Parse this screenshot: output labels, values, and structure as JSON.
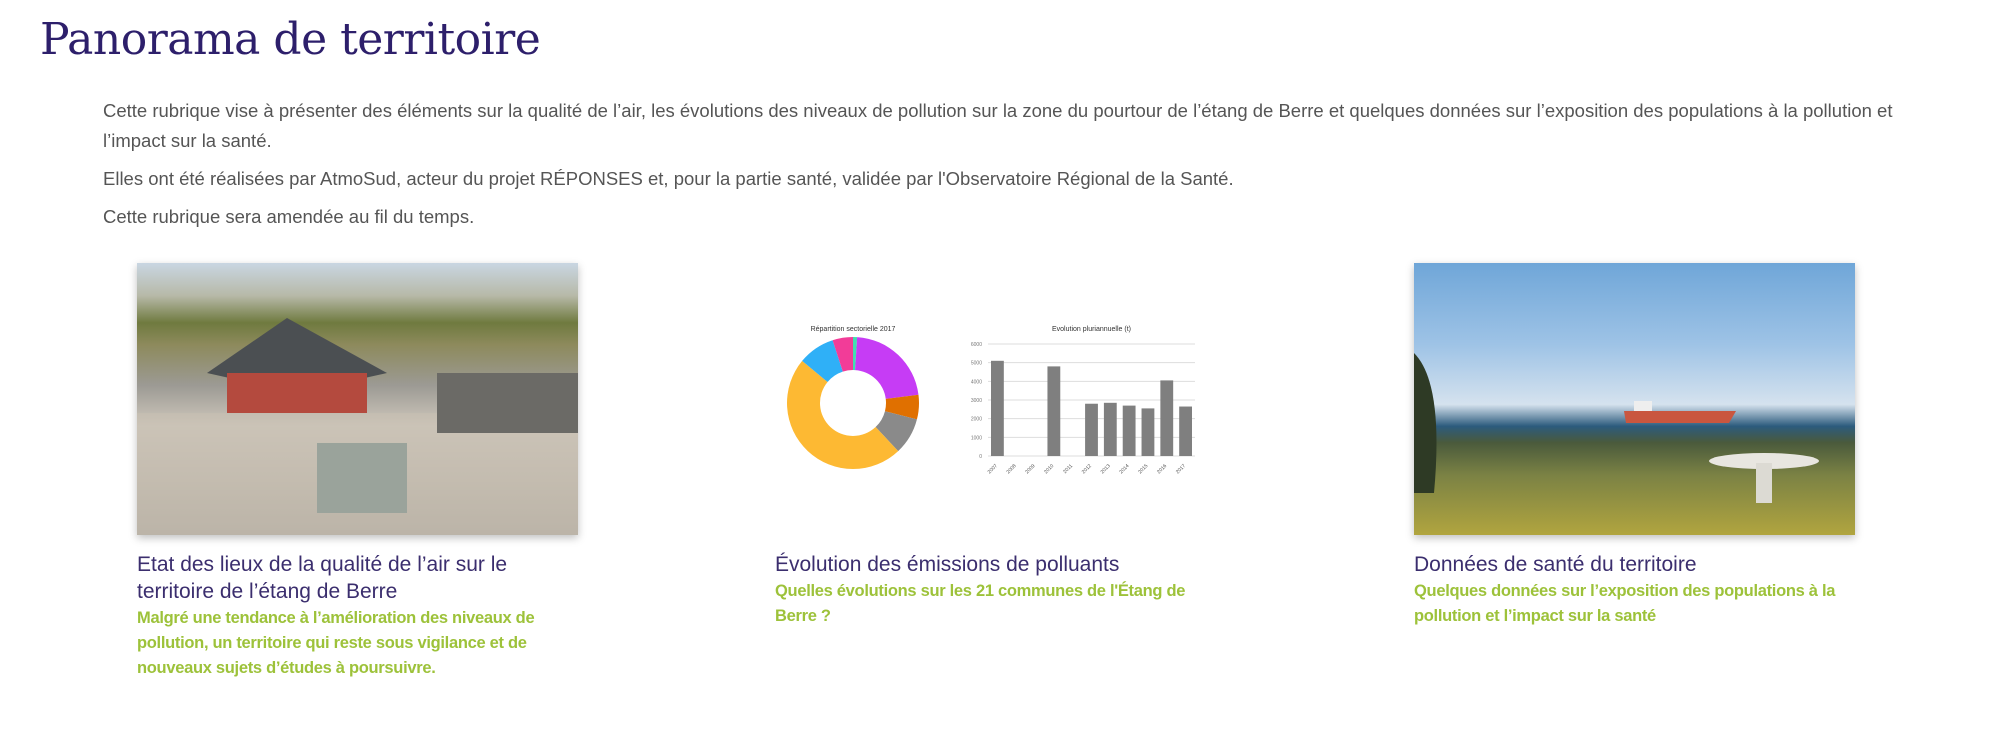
{
  "page_title": "Panorama de territoire",
  "intro": [
    "Cette rubrique vise à présenter des éléments sur la qualité de l’air, les évolutions des niveaux de pollution sur la zone du pourtour de l’étang de Berre et quelques données sur l’exposition des populations à la pollution et l’impact sur la santé.",
    "Elles ont été réalisées par AtmoSud, acteur du projet RÉPONSES et, pour la partie santé, validée par l'Observatoire Régional de la Santé.",
    "Cette rubrique sera amendée au fil du temps."
  ],
  "cards": [
    {
      "title": "Etat des lieux de la qualité de l’air sur le territoire de l’étang de Berre",
      "subtitle": "Malgré une tendance à l’amélioration des niveaux de pollution, un territoire qui reste sous vigilance et de nouveaux sujets d’études à poursuivre."
    },
    {
      "title": "Évolution des émissions de polluants",
      "subtitle": "Quelles évolutions sur les 21 communes de l'Étang de Berre ?"
    },
    {
      "title": "Données de santé du territoire",
      "subtitle": "Quelques données sur l’exposition des populations à la pollution et l’impact sur la santé"
    }
  ],
  "colors": {
    "title": "#2d1f6b",
    "subtitle": "#9dc23a"
  },
  "chart_data": [
    {
      "type": "pie",
      "title": "Répartition sectorielle 2017",
      "values": [
        1,
        22,
        6,
        9,
        48,
        9,
        5
      ],
      "colors": [
        "#3fe0b0",
        "#c63cf5",
        "#e07000",
        "#8a8a8a",
        "#fdb933",
        "#2fb0f7",
        "#f23c98"
      ]
    },
    {
      "type": "bar",
      "title": "Evolution pluriannuelle (t)",
      "categories": [
        "2007",
        "2008",
        "2009",
        "2010",
        "2011",
        "2012",
        "2013",
        "2014",
        "2015",
        "2016",
        "2017"
      ],
      "values": [
        5100,
        null,
        null,
        4800,
        null,
        2800,
        2850,
        2700,
        2550,
        4050,
        2650
      ],
      "ylim": [
        0,
        6000
      ],
      "yticks": [
        "0",
        "1000",
        "2000",
        "3000",
        "4000",
        "5000",
        "6000"
      ],
      "grid": true
    }
  ]
}
